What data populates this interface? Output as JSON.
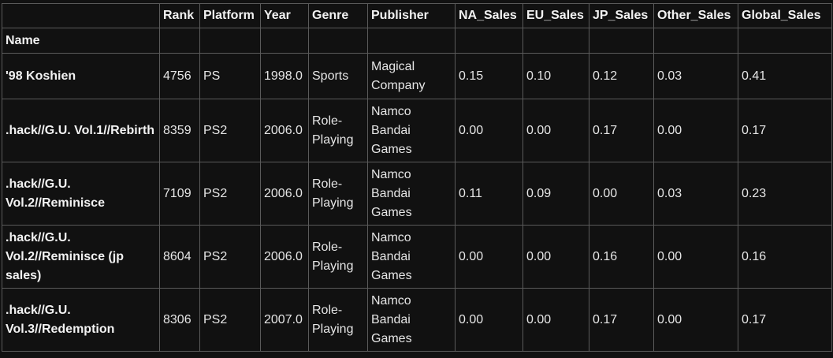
{
  "table": {
    "columns": [
      "Rank",
      "Platform",
      "Year",
      "Genre",
      "Publisher",
      "NA_Sales",
      "EU_Sales",
      "JP_Sales",
      "Other_Sales",
      "Global_Sales"
    ],
    "index_name": "Name",
    "rows": [
      {
        "name": "'98 Koshien",
        "cells": [
          "4756",
          "PS",
          "1998.0",
          "Sports",
          "Magical Company",
          "0.15",
          "0.10",
          "0.12",
          "0.03",
          "0.41"
        ]
      },
      {
        "name": ".hack//G.U. Vol.1//Rebirth",
        "cells": [
          "8359",
          "PS2",
          "2006.0",
          "Role-Playing",
          "Namco Bandai Games",
          "0.00",
          "0.00",
          "0.17",
          "0.00",
          "0.17"
        ]
      },
      {
        "name": ".hack//G.U. Vol.2//Reminisce",
        "cells": [
          "7109",
          "PS2",
          "2006.0",
          "Role-Playing",
          "Namco Bandai Games",
          "0.11",
          "0.09",
          "0.00",
          "0.03",
          "0.23"
        ]
      },
      {
        "name": ".hack//G.U. Vol.2//Reminisce (jp sales)",
        "cells": [
          "8604",
          "PS2",
          "2006.0",
          "Role-Playing",
          "Namco Bandai Games",
          "0.00",
          "0.00",
          "0.16",
          "0.00",
          "0.16"
        ]
      },
      {
        "name": ".hack//G.U. Vol.3//Redemption",
        "cells": [
          "8306",
          "PS2",
          "2007.0",
          "Role-Playing",
          "Namco Bandai Games",
          "0.00",
          "0.00",
          "0.17",
          "0.00",
          "0.17"
        ]
      }
    ]
  }
}
